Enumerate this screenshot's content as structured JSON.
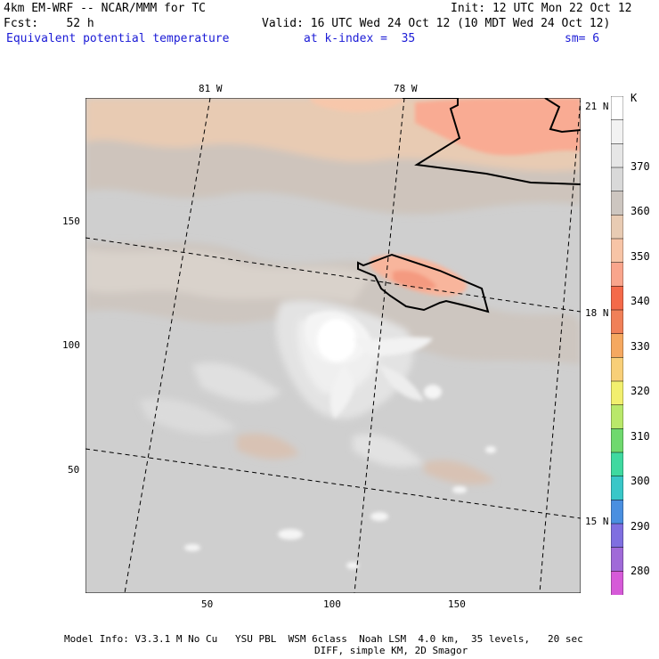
{
  "header": {
    "line1_left": "4km EM-WRF -- NCAR/MMM for TC",
    "line1_right": "Init: 12 UTC Mon 22 Oct 12",
    "line2_left": "Fcst:    52 h",
    "line2_right": "Valid: 16 UTC Wed 24 Oct 12 (10 MDT Wed 24 Oct 12)",
    "line3_left": "Equivalent potential temperature",
    "line3_mid": "at k-index =  35",
    "line3_right": "sm= 6"
  },
  "map": {
    "x_ticks": [
      "50",
      "100",
      "150"
    ],
    "y_ticks": [
      "50",
      "100",
      "150"
    ],
    "lon_labels": [
      "81 W",
      "78 W"
    ],
    "lat_labels": [
      "21 N",
      "18 N",
      "15 N"
    ]
  },
  "colorbar": {
    "unit": "K",
    "levels": [
      "370",
      "360",
      "350",
      "340",
      "330",
      "320",
      "310",
      "300",
      "290",
      "280"
    ],
    "colors": [
      "#ffffff",
      "#f2f2f2",
      "#e6e6e6",
      "#d9d9d9",
      "#cdc6c0",
      "#e8cbb3",
      "#f7c4a6",
      "#f9a58c",
      "#f46a4a",
      "#f08058",
      "#f5a860",
      "#f8cf78",
      "#f2ef6e",
      "#b9e86a",
      "#6fd96e",
      "#3fd9a0",
      "#39c7c8",
      "#4a8fe0",
      "#7f6fe0",
      "#a06ad8",
      "#d65ad8"
    ]
  },
  "footer": {
    "line1": "Model Info: V3.3.1 M No Cu   YSU PBL  WSM 6class  Noah LSM  4.0 km,  35 levels,   20 sec",
    "line2": "DIFF, simple KM, 2D Smagor"
  }
}
